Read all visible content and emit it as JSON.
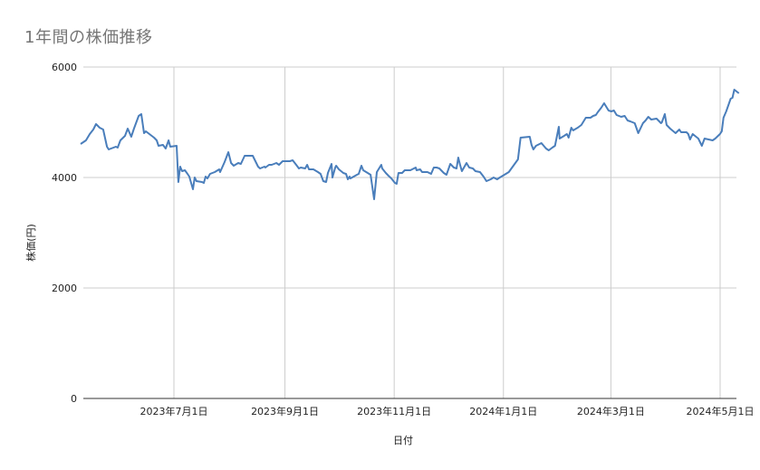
{
  "chart_data": {
    "type": "line",
    "title": "1年間の株価推移",
    "xlabel": "日付",
    "ylabel": "株価(円)",
    "ylim": [
      0,
      6000
    ],
    "yticks": [
      0,
      2000,
      4000,
      6000
    ],
    "xtick_labels": [
      "2023年7月1日",
      "2023年9月1日",
      "2023年11月1日",
      "2024年1月1日",
      "2024年3月1日",
      "2024年5月1日"
    ],
    "xtick_day_offsets": [
      0,
      62,
      123,
      184,
      244,
      305
    ],
    "x_origin_date": "2023-07-01",
    "x_range_days": [
      -52.6,
      314.1
    ],
    "grid": true,
    "legend": "none",
    "line_color": "#4a7ebb",
    "series": [
      {
        "name": "株価(円)",
        "points_day_value": [
          [
            -52.1,
            4607
          ],
          [
            -49.1,
            4672
          ],
          [
            -47.0,
            4787
          ],
          [
            -45.0,
            4869
          ],
          [
            -43.5,
            4967
          ],
          [
            -41.5,
            4902
          ],
          [
            -39.5,
            4869
          ],
          [
            -37.4,
            4557
          ],
          [
            -36.4,
            4508
          ],
          [
            -32.4,
            4557
          ],
          [
            -31.4,
            4541
          ],
          [
            -29.9,
            4672
          ],
          [
            -27.3,
            4754
          ],
          [
            -25.8,
            4885
          ],
          [
            -23.8,
            4738
          ],
          [
            -22.3,
            4885
          ],
          [
            -19.7,
            5115
          ],
          [
            -18.2,
            5148
          ],
          [
            -16.7,
            4803
          ],
          [
            -15.7,
            4836
          ],
          [
            -11.1,
            4721
          ],
          [
            -9.6,
            4672
          ],
          [
            -8.6,
            4574
          ],
          [
            -6.1,
            4590
          ],
          [
            -4.6,
            4525
          ],
          [
            -3.0,
            4672
          ],
          [
            -2.0,
            4557
          ],
          [
            1.5,
            4574
          ],
          [
            2.5,
            3918
          ],
          [
            3.5,
            4197
          ],
          [
            4.6,
            4115
          ],
          [
            6.1,
            4131
          ],
          [
            7.6,
            4066
          ],
          [
            8.6,
            4016
          ],
          [
            10.6,
            3787
          ],
          [
            11.6,
            4000
          ],
          [
            12.6,
            3934
          ],
          [
            15.7,
            3918
          ],
          [
            16.7,
            3902
          ],
          [
            17.7,
            4016
          ],
          [
            18.7,
            3984
          ],
          [
            20.2,
            4066
          ],
          [
            22.8,
            4098
          ],
          [
            25.3,
            4148
          ],
          [
            25.8,
            4098
          ],
          [
            28.3,
            4279
          ],
          [
            30.4,
            4459
          ],
          [
            31.9,
            4262
          ],
          [
            33.4,
            4213
          ],
          [
            35.9,
            4262
          ],
          [
            37.4,
            4246
          ],
          [
            39.5,
            4393
          ],
          [
            44.0,
            4393
          ],
          [
            47.0,
            4197
          ],
          [
            48.1,
            4164
          ],
          [
            50.6,
            4197
          ],
          [
            51.1,
            4180
          ],
          [
            53.1,
            4230
          ],
          [
            54.6,
            4230
          ],
          [
            57.2,
            4262
          ],
          [
            58.7,
            4230
          ],
          [
            60.7,
            4295
          ],
          [
            64.7,
            4295
          ],
          [
            66.3,
            4311
          ],
          [
            68.3,
            4230
          ],
          [
            69.8,
            4164
          ],
          [
            70.8,
            4180
          ],
          [
            73.3,
            4164
          ],
          [
            74.4,
            4230
          ],
          [
            75.4,
            4148
          ],
          [
            77.9,
            4148
          ],
          [
            80.4,
            4098
          ],
          [
            81.9,
            4066
          ],
          [
            83.4,
            3934
          ],
          [
            85.0,
            3918
          ],
          [
            86.0,
            4082
          ],
          [
            88.0,
            4246
          ],
          [
            88.5,
            4000
          ],
          [
            90.1,
            4180
          ],
          [
            90.6,
            4213
          ],
          [
            92.1,
            4148
          ],
          [
            94.6,
            4082
          ],
          [
            96.1,
            4066
          ],
          [
            97.1,
            3967
          ],
          [
            98.1,
            4016
          ],
          [
            98.6,
            3984
          ],
          [
            102.2,
            4049
          ],
          [
            103.2,
            4066
          ],
          [
            104.7,
            4213
          ],
          [
            105.7,
            4131
          ],
          [
            108.2,
            4082
          ],
          [
            109.8,
            4049
          ],
          [
            111.8,
            3607
          ],
          [
            113.3,
            4098
          ],
          [
            115.8,
            4230
          ],
          [
            116.3,
            4164
          ],
          [
            118.3,
            4082
          ],
          [
            119.8,
            4033
          ],
          [
            121.4,
            3984
          ],
          [
            123.4,
            3902
          ],
          [
            124.4,
            3885
          ],
          [
            125.4,
            4082
          ],
          [
            127.4,
            4082
          ],
          [
            128.9,
            4131
          ],
          [
            132.0,
            4131
          ],
          [
            135.0,
            4180
          ],
          [
            135.5,
            4131
          ],
          [
            137.5,
            4148
          ],
          [
            138.6,
            4098
          ],
          [
            141.6,
            4098
          ],
          [
            143.6,
            4066
          ],
          [
            145.1,
            4180
          ],
          [
            146.7,
            4180
          ],
          [
            148.2,
            4164
          ],
          [
            150.7,
            4082
          ],
          [
            152.2,
            4049
          ],
          [
            154.3,
            4246
          ],
          [
            156.3,
            4180
          ],
          [
            157.8,
            4164
          ],
          [
            158.8,
            4361
          ],
          [
            159.8,
            4230
          ],
          [
            160.8,
            4115
          ],
          [
            163.4,
            4262
          ],
          [
            164.9,
            4180
          ],
          [
            166.9,
            4164
          ],
          [
            168.4,
            4115
          ],
          [
            170.9,
            4098
          ],
          [
            172.9,
            4016
          ],
          [
            174.5,
            3934
          ],
          [
            176.9,
            3967
          ],
          [
            178.5,
            4000
          ],
          [
            180.5,
            3967
          ],
          [
            182.0,
            4000
          ],
          [
            184.5,
            4049
          ],
          [
            187.0,
            4098
          ],
          [
            192.1,
            4328
          ],
          [
            193.6,
            4721
          ],
          [
            198.7,
            4738
          ],
          [
            199.7,
            4590
          ],
          [
            200.7,
            4508
          ],
          [
            202.2,
            4574
          ],
          [
            205.2,
            4623
          ],
          [
            207.8,
            4525
          ],
          [
            209.3,
            4492
          ],
          [
            211.3,
            4541
          ],
          [
            212.8,
            4574
          ],
          [
            214.9,
            4918
          ],
          [
            215.4,
            4705
          ],
          [
            217.9,
            4754
          ],
          [
            219.4,
            4787
          ],
          [
            220.4,
            4721
          ],
          [
            221.9,
            4902
          ],
          [
            222.9,
            4852
          ],
          [
            225.5,
            4902
          ],
          [
            227.5,
            4951
          ],
          [
            230.0,
            5082
          ],
          [
            232.6,
            5082
          ],
          [
            234.1,
            5115
          ],
          [
            235.6,
            5131
          ],
          [
            236.6,
            5180
          ],
          [
            238.6,
            5262
          ],
          [
            240.2,
            5344
          ],
          [
            242.7,
            5213
          ],
          [
            244.2,
            5197
          ],
          [
            245.7,
            5213
          ],
          [
            247.2,
            5131
          ],
          [
            249.7,
            5098
          ],
          [
            251.7,
            5115
          ],
          [
            253.3,
            5033
          ],
          [
            254.8,
            5016
          ],
          [
            257.3,
            4984
          ],
          [
            259.3,
            4803
          ],
          [
            261.9,
            4984
          ],
          [
            263.4,
            5033
          ],
          [
            264.9,
            5098
          ],
          [
            266.5,
            5049
          ],
          [
            269.5,
            5066
          ],
          [
            272.0,
            4984
          ],
          [
            272.5,
            5000
          ],
          [
            274.1,
            5148
          ],
          [
            275.1,
            4951
          ],
          [
            277.1,
            4885
          ],
          [
            280.1,
            4803
          ],
          [
            282.2,
            4869
          ],
          [
            283.2,
            4820
          ],
          [
            286.2,
            4820
          ],
          [
            287.2,
            4787
          ],
          [
            288.2,
            4689
          ],
          [
            289.7,
            4787
          ],
          [
            292.8,
            4705
          ],
          [
            294.8,
            4574
          ],
          [
            296.3,
            4705
          ],
          [
            300.8,
            4672
          ],
          [
            302.3,
            4705
          ],
          [
            304.9,
            4787
          ],
          [
            305.9,
            4836
          ],
          [
            306.9,
            5082
          ],
          [
            308.4,
            5197
          ],
          [
            310.9,
            5426
          ],
          [
            311.9,
            5443
          ],
          [
            312.9,
            5590
          ],
          [
            315.5,
            5525
          ]
        ]
      }
    ]
  }
}
